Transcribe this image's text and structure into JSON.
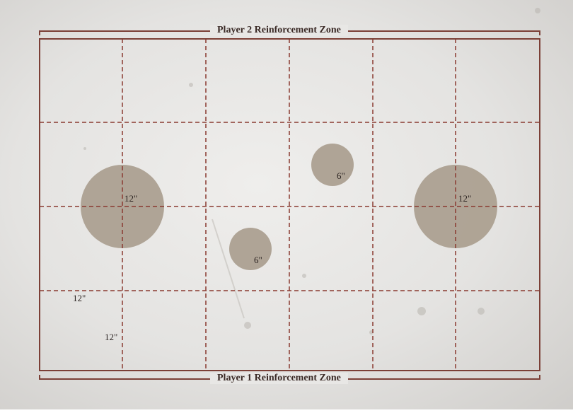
{
  "zones": {
    "top": "Player 2 Reinforcement Zone",
    "bottom": "Player 1 Reinforcement Zone"
  },
  "objectives": [
    {
      "label": "12\""
    },
    {
      "label": "12\""
    },
    {
      "label": "6\""
    },
    {
      "label": "6\""
    }
  ],
  "measurements": {
    "vertical": "12\"",
    "horizontal": "12\""
  },
  "colors": {
    "border": "#7b3f36",
    "grid": "#8a3a30",
    "objective": "#a89c8d"
  }
}
